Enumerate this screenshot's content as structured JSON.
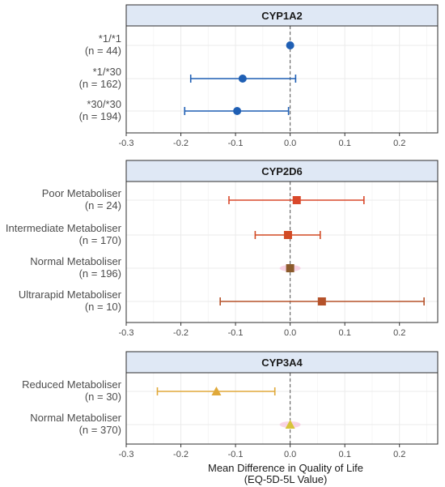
{
  "chart_data": {
    "type": "forest",
    "xlabel": [
      "Mean Difference in Quality of Life",
      "(EQ-5D-5L Value)"
    ],
    "xlim": [
      -0.3,
      0.27
    ],
    "xticks": [
      -0.3,
      -0.2,
      -0.1,
      0.0,
      0.1,
      0.2
    ],
    "xtick_labels": [
      "-0.3",
      "-0.2",
      "-0.1",
      "0.0",
      "0.1",
      "0.2"
    ],
    "grid": true,
    "reference_line": 0,
    "panels": [
      {
        "title": "CYP1A2",
        "marker": "circle",
        "rows": [
          {
            "label": "*1/*1",
            "n": "(n = 44)",
            "estimate": 0.0,
            "lower": null,
            "upper": null,
            "color": "#1f5fb4"
          },
          {
            "label": "*1/*30",
            "n": "(n = 162)",
            "estimate": -0.087,
            "lower": -0.182,
            "upper": 0.01,
            "color": "#1f5fb4"
          },
          {
            "label": "*30/*30",
            "n": "(n = 194)",
            "estimate": -0.097,
            "lower": -0.193,
            "upper": -0.003,
            "color": "#1f5fb4"
          }
        ]
      },
      {
        "title": "CYP2D6",
        "marker": "square",
        "rows": [
          {
            "label": "Poor Metaboliser",
            "n": "(n = 24)",
            "estimate": 0.012,
            "lower": -0.112,
            "upper": 0.135,
            "color": "#d9482b"
          },
          {
            "label": "Intermediate Metaboliser",
            "n": "(n = 170)",
            "estimate": -0.004,
            "lower": -0.064,
            "upper": 0.055,
            "color": "#d24a24"
          },
          {
            "label": "Normal Metaboliser",
            "n": "(n = 196)",
            "estimate": 0.0,
            "lower": null,
            "upper": null,
            "color": "#8b5a2b"
          },
          {
            "label": "Ultrarapid Metaboliser",
            "n": "(n = 10)",
            "estimate": 0.058,
            "lower": -0.128,
            "upper": 0.245,
            "color": "#b5522a"
          }
        ]
      },
      {
        "title": "CYP3A4",
        "marker": "triangle",
        "rows": [
          {
            "label": "Reduced Metaboliser",
            "n": "(n = 30)",
            "estimate": -0.135,
            "lower": -0.243,
            "upper": -0.028,
            "color": "#e0a93a"
          },
          {
            "label": "Normal Metaboliser",
            "n": "(n = 370)",
            "estimate": 0.0,
            "lower": null,
            "upper": null,
            "color": "#d8c33a"
          }
        ]
      }
    ]
  },
  "style": {
    "strip_fill": "#dfe8f5",
    "strip_border": "#2d2d2d",
    "panel_border": "#2d2d2d",
    "grid_color": "#ebebeb",
    "ref_line_color": "#555555",
    "zero_halo_color": "#f7c3dc"
  }
}
